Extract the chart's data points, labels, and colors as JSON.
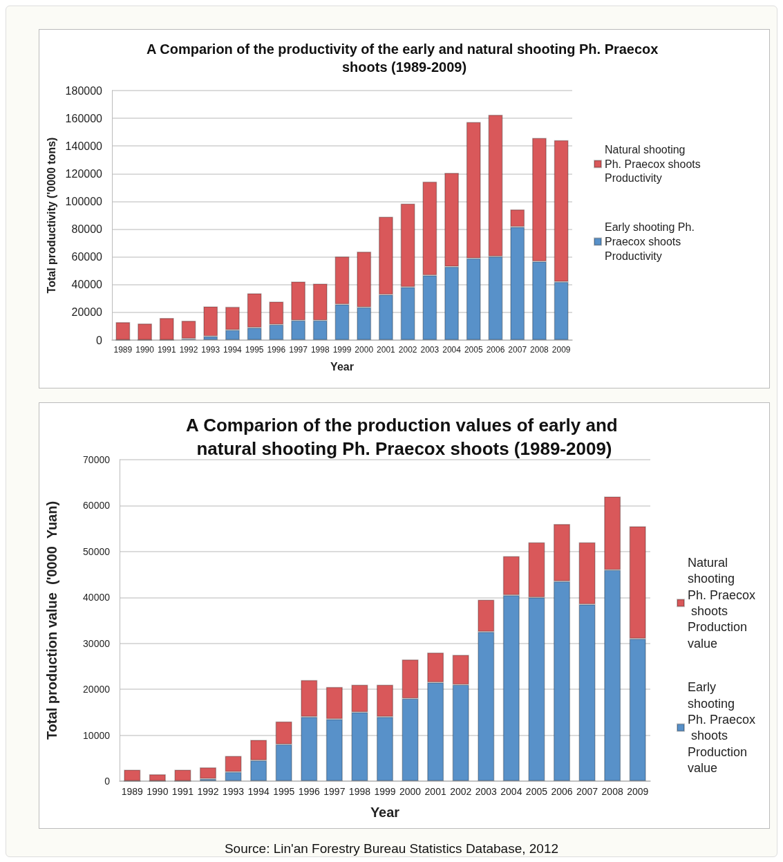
{
  "chart_data": [
    {
      "type": "bar",
      "title": "A Comparion of the productivity of the early and natural shooting Ph. Praecox shoots (1989-2009)",
      "xlabel": "Year",
      "ylabel": "Total productivity ('0000 tons)",
      "categories": [
        "1989",
        "1990",
        "1991",
        "1992",
        "1993",
        "1994",
        "1995",
        "1996",
        "1997",
        "1998",
        "1999",
        "2000",
        "2001",
        "2002",
        "2003",
        "2004",
        "2005",
        "2006",
        "2007",
        "2008",
        "2009"
      ],
      "stacked": true,
      "series": [
        {
          "name": "Early shooting Ph. Praecox shoots Productivity",
          "color": "#5891c9",
          "values": [
            0,
            0,
            0,
            1000,
            2800,
            7300,
            9000,
            11200,
            14200,
            14200,
            25800,
            23700,
            32800,
            38300,
            46700,
            53000,
            59000,
            60300,
            81700,
            56700,
            42000
          ]
        },
        {
          "name": "Natural shooting Ph. Praecox shoots Productivity",
          "color": "#d9585a",
          "values": [
            13000,
            12000,
            16000,
            13000,
            21500,
            16700,
            24800,
            16600,
            28000,
            26600,
            34500,
            40100,
            56200,
            60200,
            67600,
            67700,
            98300,
            102200,
            12600,
            89100,
            102200
          ]
        }
      ],
      "ylim": [
        0,
        180000
      ],
      "yticks": [
        0,
        20000,
        40000,
        60000,
        80000,
        100000,
        120000,
        140000,
        160000,
        180000
      ],
      "grid": "y",
      "legend": "right"
    },
    {
      "type": "bar",
      "title": "A Comparion of the production values of early and natural shooting Ph. Praecox shoots (1989-2009)",
      "xlabel": "Year",
      "ylabel": "Total production value  ('0000  Yuan)",
      "categories": [
        "1989",
        "1990",
        "1991",
        "1992",
        "1993",
        "1994",
        "1995",
        "1996",
        "1997",
        "1998",
        "1999",
        "2000",
        "2001",
        "2002",
        "2003",
        "2004",
        "2005",
        "2006",
        "2007",
        "2008",
        "2009"
      ],
      "stacked": true,
      "series": [
        {
          "name": "Early shooting Ph. Praecox shoots Production value",
          "color": "#5891c9",
          "values": [
            0,
            0,
            0,
            500,
            2000,
            4500,
            8000,
            14000,
            13500,
            15000,
            14000,
            18000,
            21500,
            21000,
            32500,
            40500,
            40000,
            43500,
            38500,
            46000,
            31000
          ]
        },
        {
          "name": "Natural shooting Ph. Praecox shoots Production value",
          "color": "#d9585a",
          "values": [
            2500,
            1500,
            2500,
            2500,
            3500,
            4500,
            5000,
            8000,
            7000,
            6000,
            7000,
            8500,
            6500,
            6500,
            7000,
            8500,
            12000,
            12500,
            13500,
            16000,
            24500
          ]
        }
      ],
      "ylim": [
        0,
        70000
      ],
      "yticks": [
        0,
        10000,
        20000,
        30000,
        40000,
        50000,
        60000,
        70000
      ],
      "grid": "y",
      "legend": "right",
      "annotations": [
        "Source: Lin'an Forestry Bureau Statistics Database, 2012"
      ]
    }
  ]
}
